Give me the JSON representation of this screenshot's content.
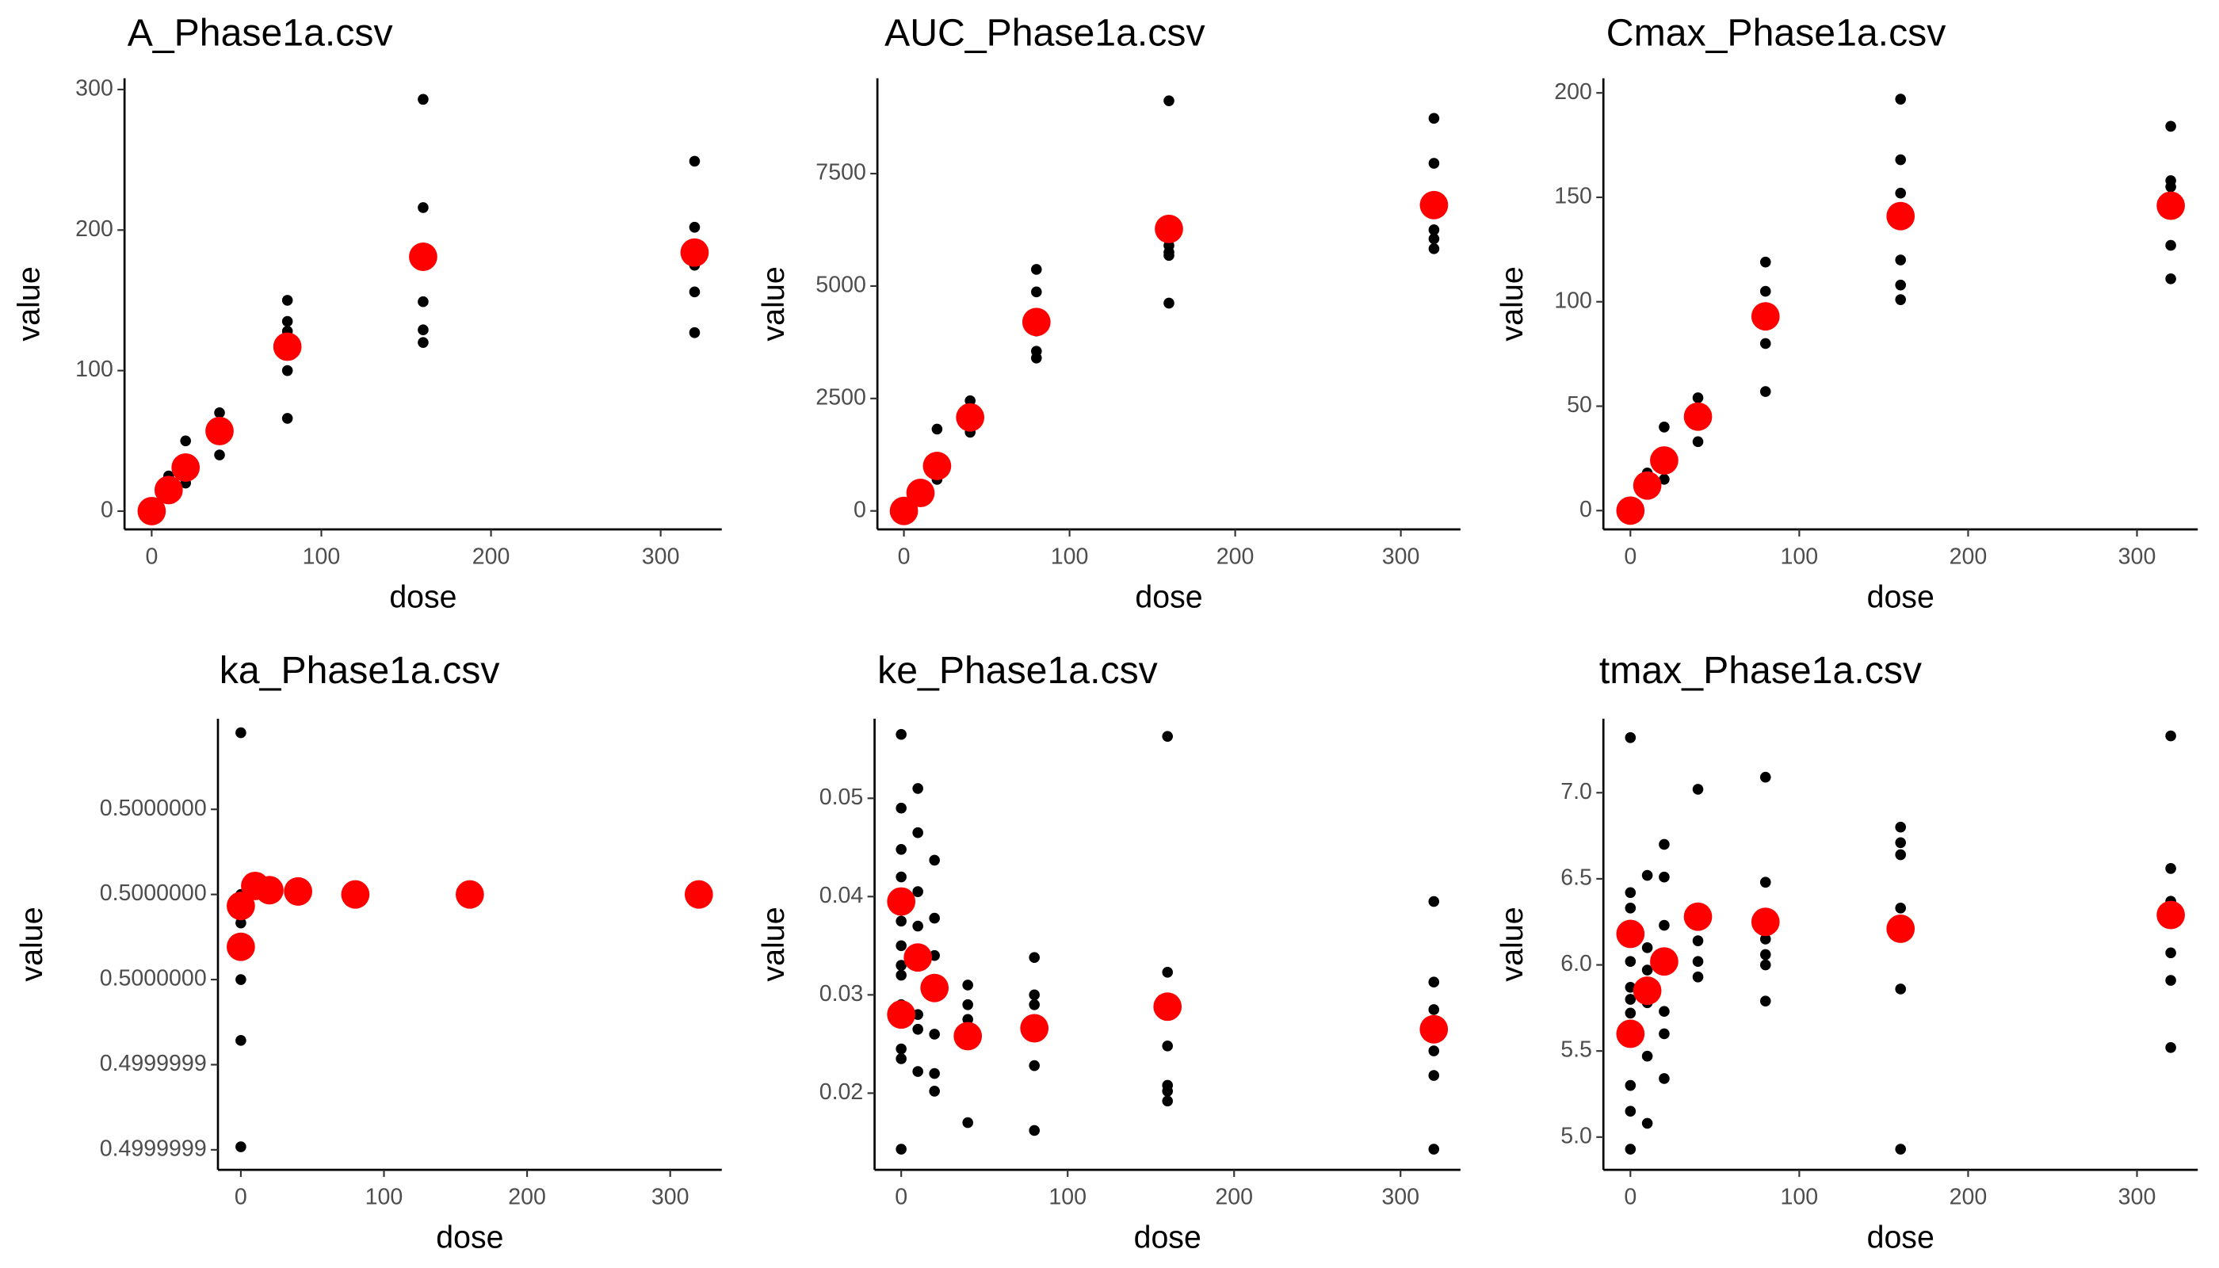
{
  "chart_data": [
    {
      "type": "scatter",
      "title": "A_Phase1a.csv",
      "xlabel": "dose",
      "ylabel": "value",
      "xlim": [
        -16,
        336
      ],
      "xticks": [
        0,
        100,
        200,
        300
      ],
      "ylim": [
        -13,
        308
      ],
      "yticks": [
        0,
        100,
        200,
        300
      ],
      "series": [
        {
          "color": "#000000",
          "x": [
            0,
            10,
            10,
            20,
            20,
            20,
            40,
            40,
            40,
            80,
            80,
            80,
            80,
            80,
            160,
            160,
            160,
            160,
            160,
            320,
            320,
            320,
            320,
            320,
            320
          ],
          "y": [
            0,
            25,
            15,
            50,
            20,
            30,
            70,
            40,
            60,
            150,
            135,
            128,
            100,
            66,
            293,
            216,
            149,
            129,
            120,
            249,
            202,
            190,
            175,
            156,
            127
          ]
        },
        {
          "color": "#ff0000",
          "x": [
            0,
            10,
            20,
            40,
            80,
            160,
            320
          ],
          "y": [
            0,
            15,
            31,
            57,
            117,
            181,
            184
          ]
        }
      ]
    },
    {
      "type": "scatter",
      "title": "AUC_Phase1a.csv",
      "xlabel": "dose",
      "ylabel": "value",
      "xlim": [
        -16,
        336
      ],
      "xticks": [
        0,
        100,
        200,
        300
      ],
      "ylim": [
        -411,
        9620
      ],
      "yticks": [
        0,
        2500,
        5000,
        7500
      ],
      "series": [
        {
          "color": "#000000",
          "x": [
            0,
            10,
            10,
            20,
            20,
            20,
            40,
            40,
            40,
            80,
            80,
            80,
            80,
            80,
            160,
            160,
            160,
            160,
            160,
            320,
            320,
            320,
            320,
            320,
            320
          ],
          "y": [
            0,
            500,
            300,
            1820,
            700,
            1000,
            2450,
            1750,
            2100,
            5370,
            4870,
            4000,
            3550,
            3400,
            9120,
            5900,
            5750,
            5680,
            4620,
            8730,
            7730,
            6950,
            6250,
            6050,
            5830
          ]
        },
        {
          "color": "#ff0000",
          "x": [
            0,
            10,
            20,
            40,
            80,
            160,
            320
          ],
          "y": [
            0,
            400,
            1000,
            2080,
            4200,
            6270,
            6800
          ]
        }
      ]
    },
    {
      "type": "scatter",
      "title": "Cmax_Phase1a.csv",
      "xlabel": "dose",
      "ylabel": "value",
      "xlim": [
        -16,
        336
      ],
      "xticks": [
        0,
        100,
        200,
        300
      ],
      "ylim": [
        -9,
        207
      ],
      "yticks": [
        0,
        50,
        100,
        150,
        200
      ],
      "series": [
        {
          "color": "#000000",
          "x": [
            0,
            10,
            10,
            20,
            20,
            20,
            40,
            40,
            40,
            80,
            80,
            80,
            80,
            160,
            160,
            160,
            160,
            160,
            160,
            320,
            320,
            320,
            320,
            320
          ],
          "y": [
            0,
            18,
            10,
            40,
            15,
            25,
            54,
            33,
            45,
            119,
            105,
            80,
            57,
            197,
            168,
            152,
            120,
            108,
            101,
            184,
            158,
            155,
            127,
            111
          ]
        },
        {
          "color": "#ff0000",
          "x": [
            0,
            10,
            20,
            40,
            80,
            160,
            320
          ],
          "y": [
            0,
            12,
            24,
            45,
            93,
            141,
            146
          ]
        }
      ]
    },
    {
      "type": "scatter",
      "title": "ka_Phase1a.csv",
      "xlabel": "dose",
      "ylabel": "value",
      "xlim": [
        -16,
        336
      ],
      "xticks": [
        0,
        100,
        200,
        300
      ],
      "ylim": [
        0.4999999153,
        0.5000000213
      ],
      "yticks": [
        {
          "value": 0.5,
          "label": "0.5000000"
        },
        {
          "value": 0.49999998,
          "label": "0.5000000"
        },
        {
          "value": 0.49999996,
          "label": "0.5000000"
        },
        {
          "value": 0.49999994,
          "label": "0.4999999"
        },
        {
          "value": 0.49999992,
          "label": "0.4999999"
        }
      ],
      "series": [
        {
          "color": "#000000",
          "x": [
            0,
            0,
            0,
            0,
            0,
            0
          ],
          "y": [
            0.500000018,
            0.49999998,
            0.4999999733,
            0.49999996,
            0.4999999457,
            0.4999999207
          ]
        },
        {
          "color": "#ff0000",
          "x": [
            0,
            0,
            10,
            20,
            40,
            80,
            160,
            320
          ],
          "y": [
            0.4999999677,
            0.4999999773,
            0.499999982,
            0.499999981,
            0.4999999807,
            0.49999998,
            0.49999998,
            0.49999998
          ]
        }
      ]
    },
    {
      "type": "scatter",
      "title": "ke_Phase1a.csv",
      "xlabel": "dose",
      "ylabel": "value",
      "xlim": [
        -16,
        336
      ],
      "xticks": [
        0,
        100,
        200,
        300
      ],
      "ylim": [
        0.0122,
        0.0581
      ],
      "yticks": [
        0.02,
        0.03,
        0.04,
        0.05
      ],
      "series": [
        {
          "color": "#000000",
          "x": [
            0,
            0,
            0,
            0,
            0,
            0,
            0,
            0,
            0,
            0,
            0,
            0,
            10,
            10,
            10,
            10,
            10,
            10,
            10,
            20,
            20,
            20,
            20,
            20,
            20,
            40,
            40,
            40,
            40,
            80,
            80,
            80,
            80,
            80,
            160,
            160,
            160,
            160,
            160,
            160,
            320,
            320,
            320,
            320,
            320,
            320
          ],
          "y": [
            0.0565,
            0.049,
            0.0448,
            0.042,
            0.0375,
            0.035,
            0.033,
            0.032,
            0.029,
            0.0245,
            0.0235,
            0.0143,
            0.051,
            0.0465,
            0.0405,
            0.037,
            0.028,
            0.0265,
            0.0222,
            0.0437,
            0.0378,
            0.034,
            0.026,
            0.022,
            0.0202,
            0.031,
            0.029,
            0.0275,
            0.017,
            0.0338,
            0.03,
            0.029,
            0.0228,
            0.0162,
            0.0563,
            0.0323,
            0.0248,
            0.0208,
            0.0202,
            0.0192,
            0.0395,
            0.0313,
            0.0285,
            0.0243,
            0.0218,
            0.0143
          ]
        },
        {
          "color": "#ff0000",
          "x": [
            0,
            0,
            10,
            20,
            40,
            80,
            160,
            320
          ],
          "y": [
            0.0395,
            0.028,
            0.0338,
            0.0307,
            0.0258,
            0.0266,
            0.0288,
            0.0265
          ]
        }
      ]
    },
    {
      "type": "scatter",
      "title": "tmax_Phase1a.csv",
      "xlabel": "dose",
      "ylabel": "value",
      "xlim": [
        -16,
        336
      ],
      "xticks": [
        0,
        100,
        200,
        300
      ],
      "ylim": [
        4.81,
        7.43
      ],
      "yticks": [
        {
          "value": 5,
          "label": "5.0"
        },
        5.5,
        {
          "value": 6,
          "label": "6.0"
        },
        6.5,
        {
          "value": 7,
          "label": "7.0"
        }
      ],
      "series": [
        {
          "color": "#000000",
          "x": [
            0,
            0,
            0,
            0,
            0,
            0,
            0,
            0,
            0,
            0,
            0,
            10,
            10,
            10,
            10,
            10,
            10,
            20,
            20,
            20,
            20,
            20,
            20,
            40,
            40,
            40,
            40,
            40,
            80,
            80,
            80,
            80,
            80,
            80,
            160,
            160,
            160,
            160,
            160,
            160,
            320,
            320,
            320,
            320,
            320,
            320,
            320
          ],
          "y": [
            7.32,
            6.42,
            6.33,
            6.2,
            6.02,
            5.87,
            5.8,
            5.72,
            5.3,
            5.15,
            4.93,
            6.52,
            6.1,
            5.97,
            5.78,
            5.47,
            5.08,
            6.7,
            6.51,
            6.23,
            5.73,
            5.6,
            5.34,
            7.02,
            6.23,
            6.14,
            6.02,
            5.93,
            7.09,
            6.48,
            6.15,
            6.06,
            6.0,
            5.79,
            6.8,
            6.71,
            6.64,
            6.33,
            5.86,
            4.93,
            7.33,
            6.56,
            6.37,
            6.3,
            6.07,
            5.91,
            5.52
          ]
        },
        {
          "color": "#ff0000",
          "x": [
            0,
            0,
            10,
            20,
            40,
            80,
            160,
            320
          ],
          "y": [
            6.18,
            5.6,
            5.85,
            6.02,
            6.28,
            6.25,
            6.21,
            6.29
          ]
        }
      ]
    }
  ]
}
